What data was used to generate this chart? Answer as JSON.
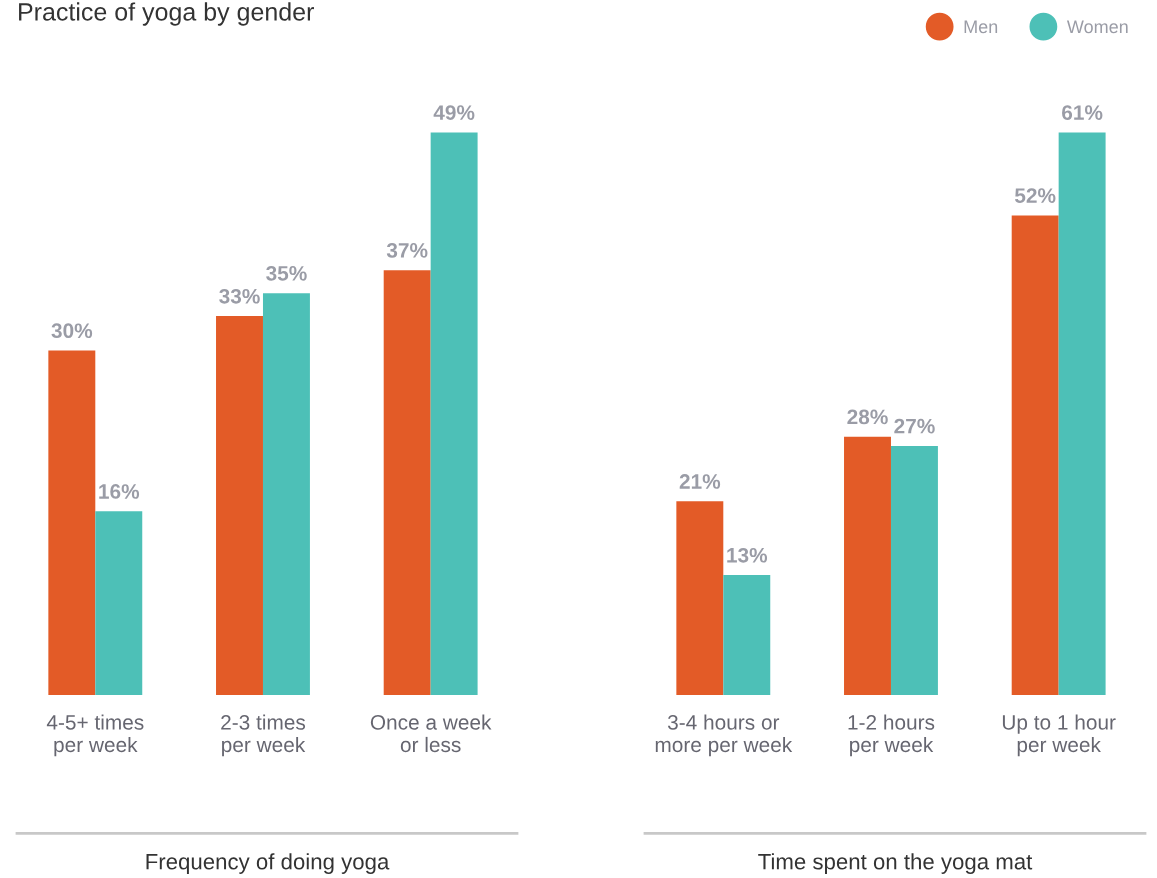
{
  "chart_data": [
    {
      "type": "bar",
      "title": "Practice of yoga by gender",
      "xlabel": "Frequency of doing yoga",
      "categories": [
        "4-5+ times\nper week",
        "2-3 times\nper week",
        "Once a week\nor less"
      ],
      "series": [
        {
          "color": "#e35b27",
          "values": [
            30,
            33,
            37
          ],
          "value_labels": [
            "30%",
            "33%",
            "37%"
          ]
        },
        {
          "color": "#4dc0b7",
          "values": [
            16,
            35,
            49
          ],
          "value_labels": [
            "16%",
            "35%",
            "49%"
          ]
        }
      ],
      "tick_labels": "x"
    },
    {
      "type": "bar",
      "xlabel": "Time spent on the yoga mat",
      "categories": [
        "3-4 hours or\nmore per week",
        "1-2 hours\nper week",
        "Up to 1 hour\nper week"
      ],
      "series": [
        {
          "name": "Men",
          "color": "#e35b27",
          "values": [
            21,
            28,
            52
          ],
          "value_labels": [
            "21%",
            "28%",
            "52%"
          ]
        },
        {
          "name": "Women",
          "color": "#4dc0b7",
          "values": [
            13,
            27,
            61
          ],
          "value_labels": [
            "13%",
            "27%",
            "61%"
          ]
        }
      ],
      "tick_labels": "x",
      "legend": "top right"
    }
  ]
}
